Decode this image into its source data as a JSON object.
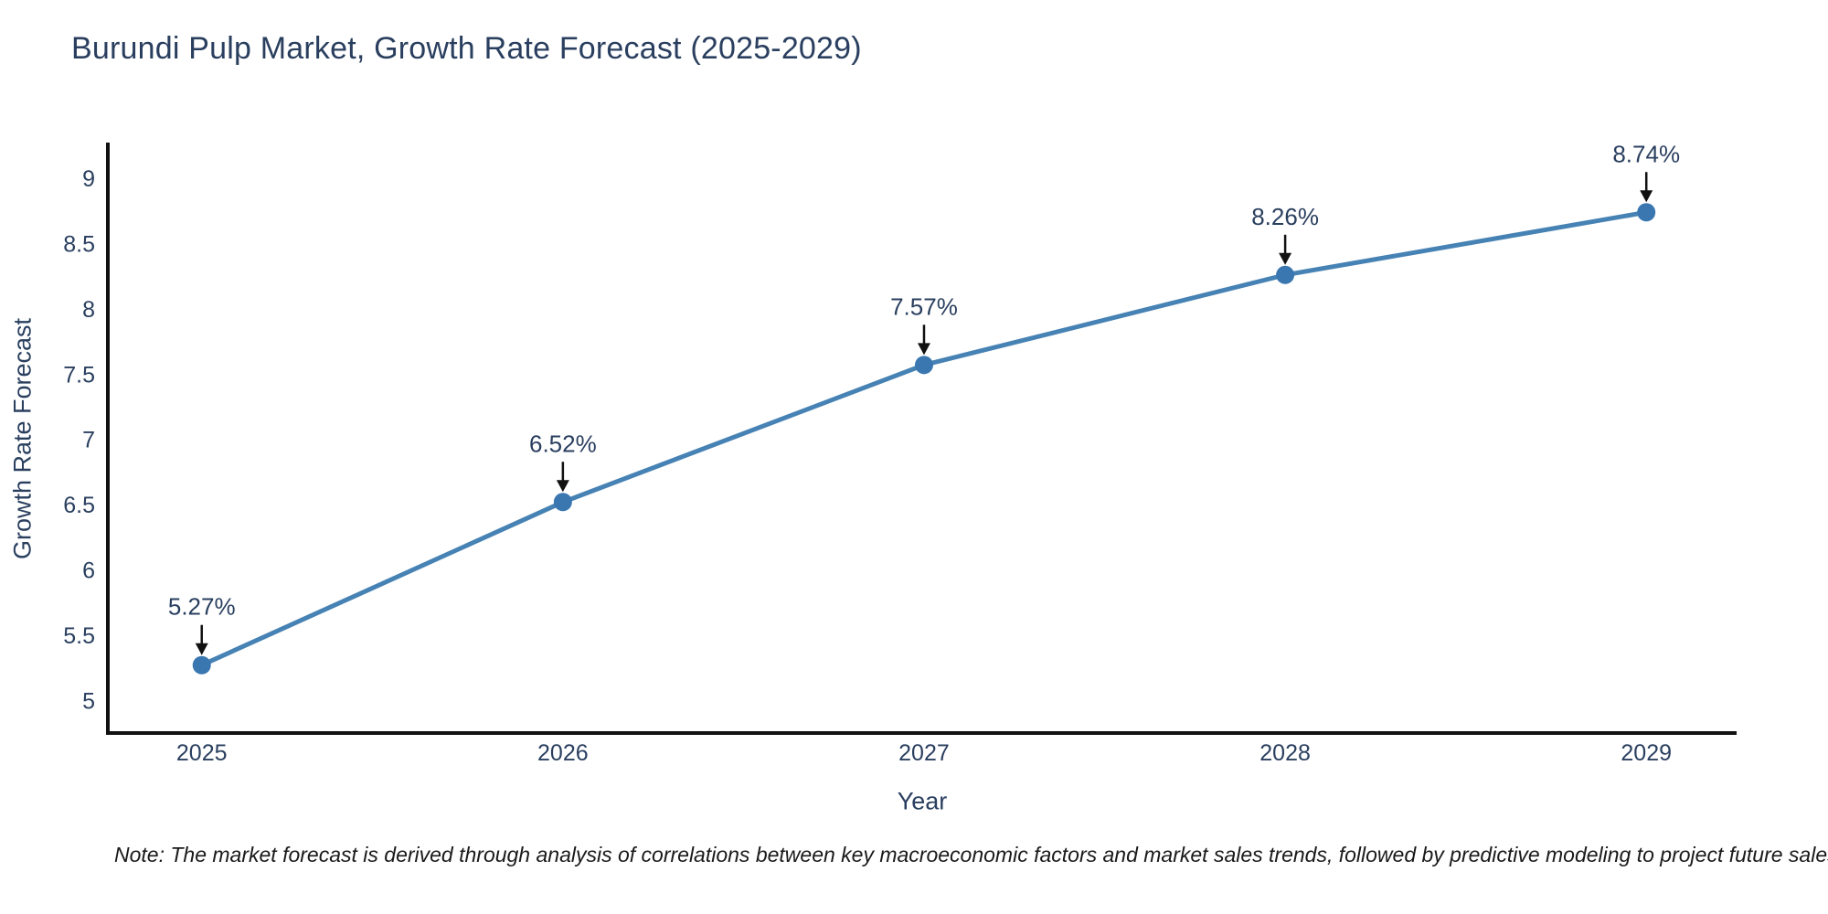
{
  "title": "Burundi Pulp Market, Growth Rate Forecast (2025-2029)",
  "note": "Note: The market forecast is derived through analysis of correlations between key macroeconomic factors and market sales trends, followed by predictive modeling to project future sales",
  "chart_data": {
    "type": "line",
    "title": "Burundi Pulp Market, Growth Rate Forecast (2025-2029)",
    "xlabel": "Year",
    "ylabel": "Growth Rate Forecast",
    "x": [
      2025,
      2026,
      2027,
      2028,
      2029
    ],
    "series": [
      {
        "name": "Growth Rate Forecast",
        "values": [
          5.27,
          6.52,
          7.57,
          8.26,
          8.74
        ]
      }
    ],
    "point_labels": [
      "5.27%",
      "6.52%",
      "7.57%",
      "8.26%",
      "8.74%"
    ],
    "xtick_labels": [
      "2025",
      "2026",
      "2027",
      "2028",
      "2029"
    ],
    "yticks": [
      5,
      5.5,
      6,
      6.5,
      7,
      7.5,
      8,
      8.5,
      9
    ],
    "ytick_labels": [
      "5",
      "5.5",
      "6",
      "6.5",
      "7",
      "7.5",
      "8",
      "8.5",
      "9"
    ],
    "xlim": [
      2024.74,
      2029.25
    ],
    "ylim": [
      4.75,
      9.26
    ],
    "grid": false,
    "legend_position": "none",
    "line_color": "#4682b4",
    "marker_color": "#3a77b0",
    "arrow_color": "#111111",
    "axis_color": "#111111",
    "text_color": "#2a3f5f"
  }
}
